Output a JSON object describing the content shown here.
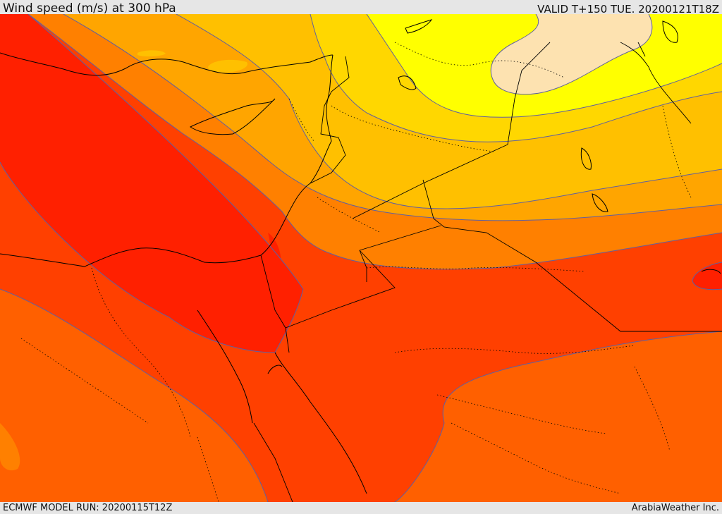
{
  "header": {
    "title": "Wind speed (m/s) at 300 hPa",
    "valid": "VALID T+150 TUE. 20200121T18Z"
  },
  "footer": {
    "model_run": "ECMWF MODEL RUN: 20200115T12Z",
    "credit": "ArabiaWeather Inc."
  },
  "colors": {
    "band_1": "#fde2b0",
    "band_2": "#ffff00",
    "band_3": "#ffd700",
    "band_4": "#ffc000",
    "band_5": "#ffa500",
    "band_6": "#ff8000",
    "band_7": "#ff6000",
    "band_8": "#ff4000",
    "band_9": "#ff2000",
    "contour": "#6060a0",
    "border": "#000000"
  }
}
